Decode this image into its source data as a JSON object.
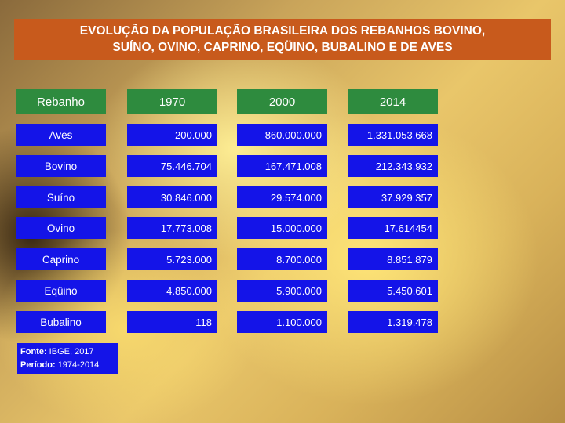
{
  "title": {
    "line1": "EVOLUÇÃO DA POPULAÇÃO BRASILEIRA DOS REBANHOS BOVINO,",
    "line2": "SUÍNO, OVINO, CAPRINO, EQÜINO, BUBALINO E DE AVES"
  },
  "table": {
    "headers": [
      "Rebanho",
      "1970",
      "2000",
      "2014"
    ],
    "rows": [
      {
        "name": "Aves",
        "v1970": "200.000",
        "v2000": "860.000.000",
        "v2014": "1.331.053.668"
      },
      {
        "name": "Bovino",
        "v1970": "75.446.704",
        "v2000": "167.471.008",
        "v2014": "212.343.932"
      },
      {
        "name": "Suíno",
        "v1970": "30.846.000",
        "v2000": "29.574.000",
        "v2014": "37.929.357"
      },
      {
        "name": "Ovino",
        "v1970": "17.773.008",
        "v2000": "15.000.000",
        "v2014": "17.614454"
      },
      {
        "name": "Caprino",
        "v1970": "5.723.000",
        "v2000": "8.700.000",
        "v2014": "8.851.879"
      },
      {
        "name": "Eqüino",
        "v1970": "4.850.000",
        "v2000": "5.900.000",
        "v2014": "5.450.601"
      },
      {
        "name": "Bubalino",
        "v1970": "118",
        "v2000": "1.100.000",
        "v2014": "1.319.478"
      }
    ]
  },
  "source": {
    "label1": "Fonte:",
    "value1": "IBGE, 2017",
    "label2": "Período:",
    "value2": "1974-2014"
  },
  "colors": {
    "title_bg": "#c85a1c",
    "header_bg": "#2e8b3e",
    "cell_bg": "#1414e8"
  }
}
